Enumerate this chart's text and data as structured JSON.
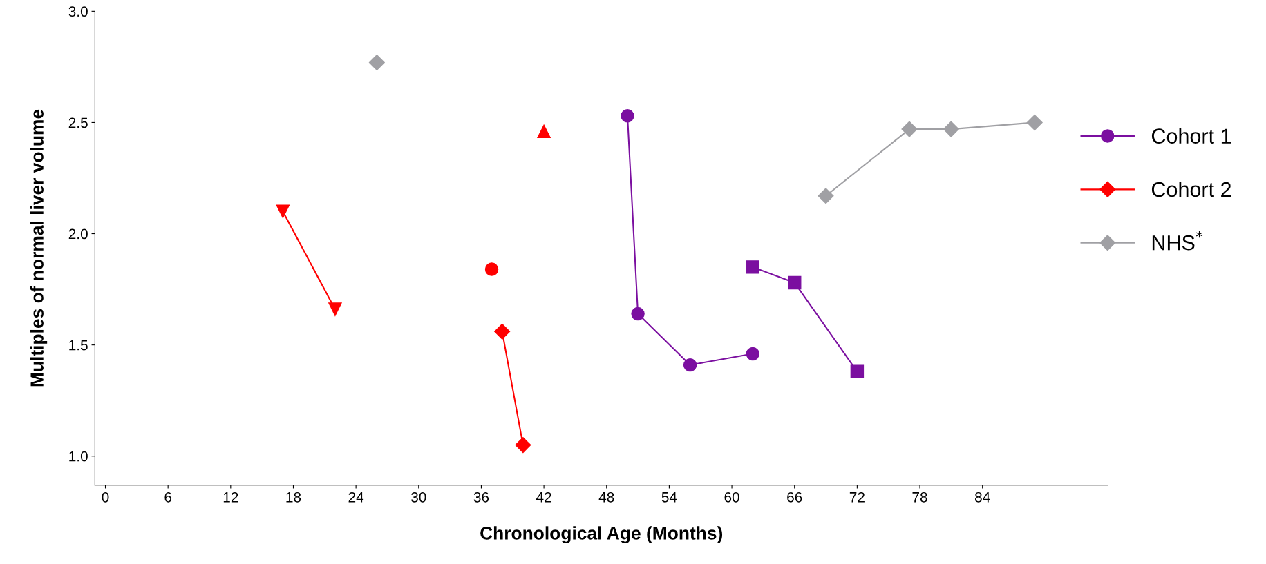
{
  "chart_data": {
    "type": "line",
    "xlabel": "Chronological Age (Months)",
    "ylabel": "Multiples of normal liver volume",
    "xlim": [
      -1,
      96
    ],
    "ylim": [
      0.87,
      3.0
    ],
    "xticks": [
      0,
      6,
      12,
      18,
      24,
      30,
      36,
      42,
      48,
      54,
      60,
      66,
      72,
      78,
      84
    ],
    "yticks": [
      {
        "value": 1.0,
        "label": "1.0"
      },
      1.5,
      {
        "value": 2.0,
        "label": "2.0"
      },
      2.5,
      {
        "value": 3.0,
        "label": "3.0"
      }
    ],
    "grid": false,
    "legend": "right",
    "line_style": "solid",
    "series": [
      {
        "name": "Cohort 1",
        "color": "#7b0fa0",
        "marker": "circle",
        "x": [
          50,
          51,
          56,
          62
        ],
        "values": [
          2.53,
          1.64,
          1.41,
          1.46
        ]
      },
      {
        "color": "#7b0fa0",
        "marker": "square",
        "x": [
          62,
          66,
          72
        ],
        "values": [
          1.85,
          1.78,
          1.38
        ]
      },
      {
        "name": "Cohort 2",
        "color": "#ff0000",
        "marker": "diamond",
        "x": [
          38,
          40
        ],
        "values": [
          1.56,
          1.05
        ]
      },
      {
        "color": "#ff0000",
        "marker": "triangle_down",
        "x": [
          17,
          22
        ],
        "values": [
          2.1,
          1.66
        ]
      },
      {
        "color": "#ff0000",
        "marker": "circle",
        "type": "scatter",
        "x": [
          37
        ],
        "values": [
          1.84
        ]
      },
      {
        "color": "#ff0000",
        "marker": "triangle",
        "type": "scatter",
        "x": [
          42
        ],
        "values": [
          2.46
        ]
      },
      {
        "name": "NHS$^{*}$",
        "color": "#a0a0a4",
        "marker": "diamond",
        "x": [
          69,
          77,
          81,
          89
        ],
        "values": [
          2.17,
          2.47,
          2.47,
          2.5
        ]
      },
      {
        "color": "#a0a0a4",
        "marker": "diamond",
        "type": "scatter",
        "x": [
          26
        ],
        "values": [
          2.77
        ]
      }
    ]
  }
}
